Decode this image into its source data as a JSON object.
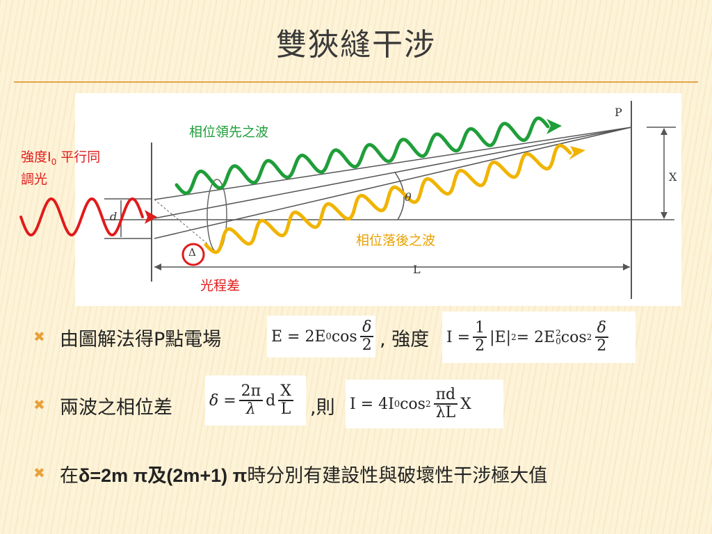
{
  "slide": {
    "title": "雙狹縫干涉"
  },
  "diagram": {
    "input_label_line1": "強度I",
    "input_label_sub": "0",
    "input_label_line1_rest": " 平行同",
    "input_label_line2": "調光",
    "leading_wave_label": "相位領先之波",
    "lagging_wave_label": "相位落後之波",
    "path_diff_label": "光程差",
    "delta_symbol": "Δ",
    "point_label": "P",
    "x_label": "X",
    "l_label": "L",
    "theta_label": "θ",
    "d_label": "d",
    "colors": {
      "leading": "#1f9e3a",
      "lagging": "#f0b400",
      "input": "#e01b1b"
    }
  },
  "bullets": [
    {
      "prefix": "由圖解法得P點電場",
      "middle": ", 強度",
      "eq1": {
        "lhs": "E = 2E",
        "sub": "0",
        "func": " cos",
        "num": "δ",
        "den": "2"
      },
      "eq2": {
        "lhs": "I = ",
        "num1": "1",
        "den1": "2",
        "abs": "|E|",
        "sup": "2",
        "mid": " = 2E",
        "sub": "0",
        "sup2": "2",
        "func": " cos",
        "sup3": "2",
        "num2": "δ",
        "den2": "2"
      }
    },
    {
      "prefix": "兩波之相位差",
      "middle": ",則",
      "eq1": {
        "lhs": "δ = ",
        "num1": "2π",
        "den1": "λ",
        "mid": "d",
        "num2": "X",
        "den2": "L"
      },
      "eq2": {
        "lhs": "I = 4I",
        "sub": "0",
        "func": " cos",
        "sup": "2",
        "num": "πd",
        "den": "λL",
        "tail": "X"
      }
    },
    {
      "pre": "在",
      "b1": "δ=2m π",
      "mid": "及",
      "b2": "(2m+1) π",
      "post": "時分別有建設性與破壞性干涉極大值"
    }
  ]
}
